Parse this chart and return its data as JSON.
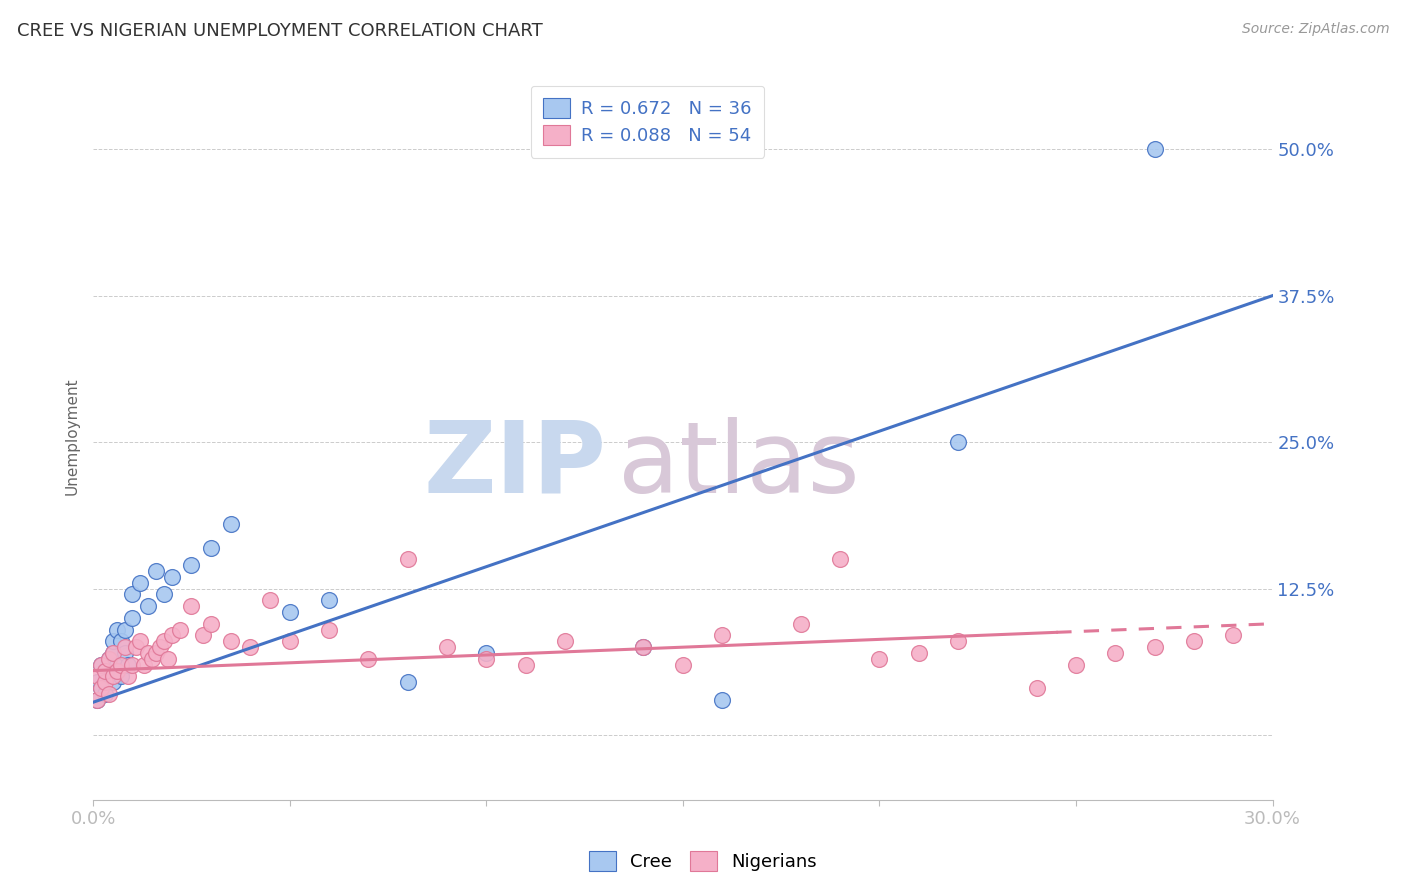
{
  "title": "CREE VS NIGERIAN UNEMPLOYMENT CORRELATION CHART",
  "source": "Source: ZipAtlas.com",
  "ylabel": "Unemployment",
  "ytick_labels": [
    "50.0%",
    "37.5%",
    "25.0%",
    "12.5%",
    ""
  ],
  "ytick_values": [
    0.5,
    0.375,
    0.25,
    0.125,
    0.0
  ],
  "xlim": [
    0.0,
    0.3
  ],
  "ylim": [
    -0.055,
    0.565
  ],
  "legend_cree_R": "R = 0.672",
  "legend_cree_N": "N = 36",
  "legend_nig_R": "R = 0.088",
  "legend_nig_N": "N = 54",
  "cree_color": "#A8C8F0",
  "nigerian_color": "#F5B0C8",
  "cree_line_color": "#4472C4",
  "nigerian_line_color": "#E07898",
  "background_color": "#FFFFFF",
  "watermark_zip": "ZIP",
  "watermark_atlas": "atlas",
  "watermark_color_zip": "#C8D8EE",
  "watermark_color_atlas": "#D8C8D8",
  "cree_x": [
    0.001,
    0.001,
    0.002,
    0.002,
    0.003,
    0.003,
    0.004,
    0.004,
    0.005,
    0.005,
    0.005,
    0.006,
    0.006,
    0.007,
    0.007,
    0.008,
    0.008,
    0.009,
    0.01,
    0.01,
    0.012,
    0.014,
    0.016,
    0.018,
    0.02,
    0.025,
    0.03,
    0.035,
    0.05,
    0.06,
    0.08,
    0.1,
    0.14,
    0.16,
    0.22,
    0.27
  ],
  "cree_y": [
    0.03,
    0.045,
    0.04,
    0.06,
    0.035,
    0.055,
    0.05,
    0.065,
    0.045,
    0.07,
    0.08,
    0.06,
    0.09,
    0.05,
    0.08,
    0.07,
    0.09,
    0.06,
    0.1,
    0.12,
    0.13,
    0.11,
    0.14,
    0.12,
    0.135,
    0.145,
    0.16,
    0.18,
    0.105,
    0.115,
    0.045,
    0.07,
    0.075,
    0.03,
    0.25,
    0.5
  ],
  "nigerian_x": [
    0.001,
    0.001,
    0.002,
    0.002,
    0.003,
    0.003,
    0.004,
    0.004,
    0.005,
    0.005,
    0.006,
    0.007,
    0.008,
    0.009,
    0.01,
    0.011,
    0.012,
    0.013,
    0.014,
    0.015,
    0.016,
    0.017,
    0.018,
    0.019,
    0.02,
    0.022,
    0.025,
    0.028,
    0.03,
    0.035,
    0.04,
    0.045,
    0.05,
    0.06,
    0.07,
    0.08,
    0.09,
    0.1,
    0.11,
    0.12,
    0.14,
    0.15,
    0.16,
    0.18,
    0.19,
    0.2,
    0.21,
    0.22,
    0.24,
    0.25,
    0.26,
    0.27,
    0.28,
    0.29
  ],
  "nigerian_y": [
    0.03,
    0.05,
    0.04,
    0.06,
    0.045,
    0.055,
    0.035,
    0.065,
    0.05,
    0.07,
    0.055,
    0.06,
    0.075,
    0.05,
    0.06,
    0.075,
    0.08,
    0.06,
    0.07,
    0.065,
    0.07,
    0.075,
    0.08,
    0.065,
    0.085,
    0.09,
    0.11,
    0.085,
    0.095,
    0.08,
    0.075,
    0.115,
    0.08,
    0.09,
    0.065,
    0.15,
    0.075,
    0.065,
    0.06,
    0.08,
    0.075,
    0.06,
    0.085,
    0.095,
    0.15,
    0.065,
    0.07,
    0.08,
    0.04,
    0.06,
    0.07,
    0.075,
    0.08,
    0.085
  ],
  "cree_line_x": [
    0.0,
    0.3
  ],
  "cree_line_y": [
    0.028,
    0.375
  ],
  "nig_line_x": [
    0.0,
    0.3
  ],
  "nig_line_y": [
    0.055,
    0.095
  ],
  "nig_line_solid_end": 0.245,
  "grid_color": "#CCCCCC",
  "grid_style": "--",
  "spine_color": "#BBBBBB"
}
